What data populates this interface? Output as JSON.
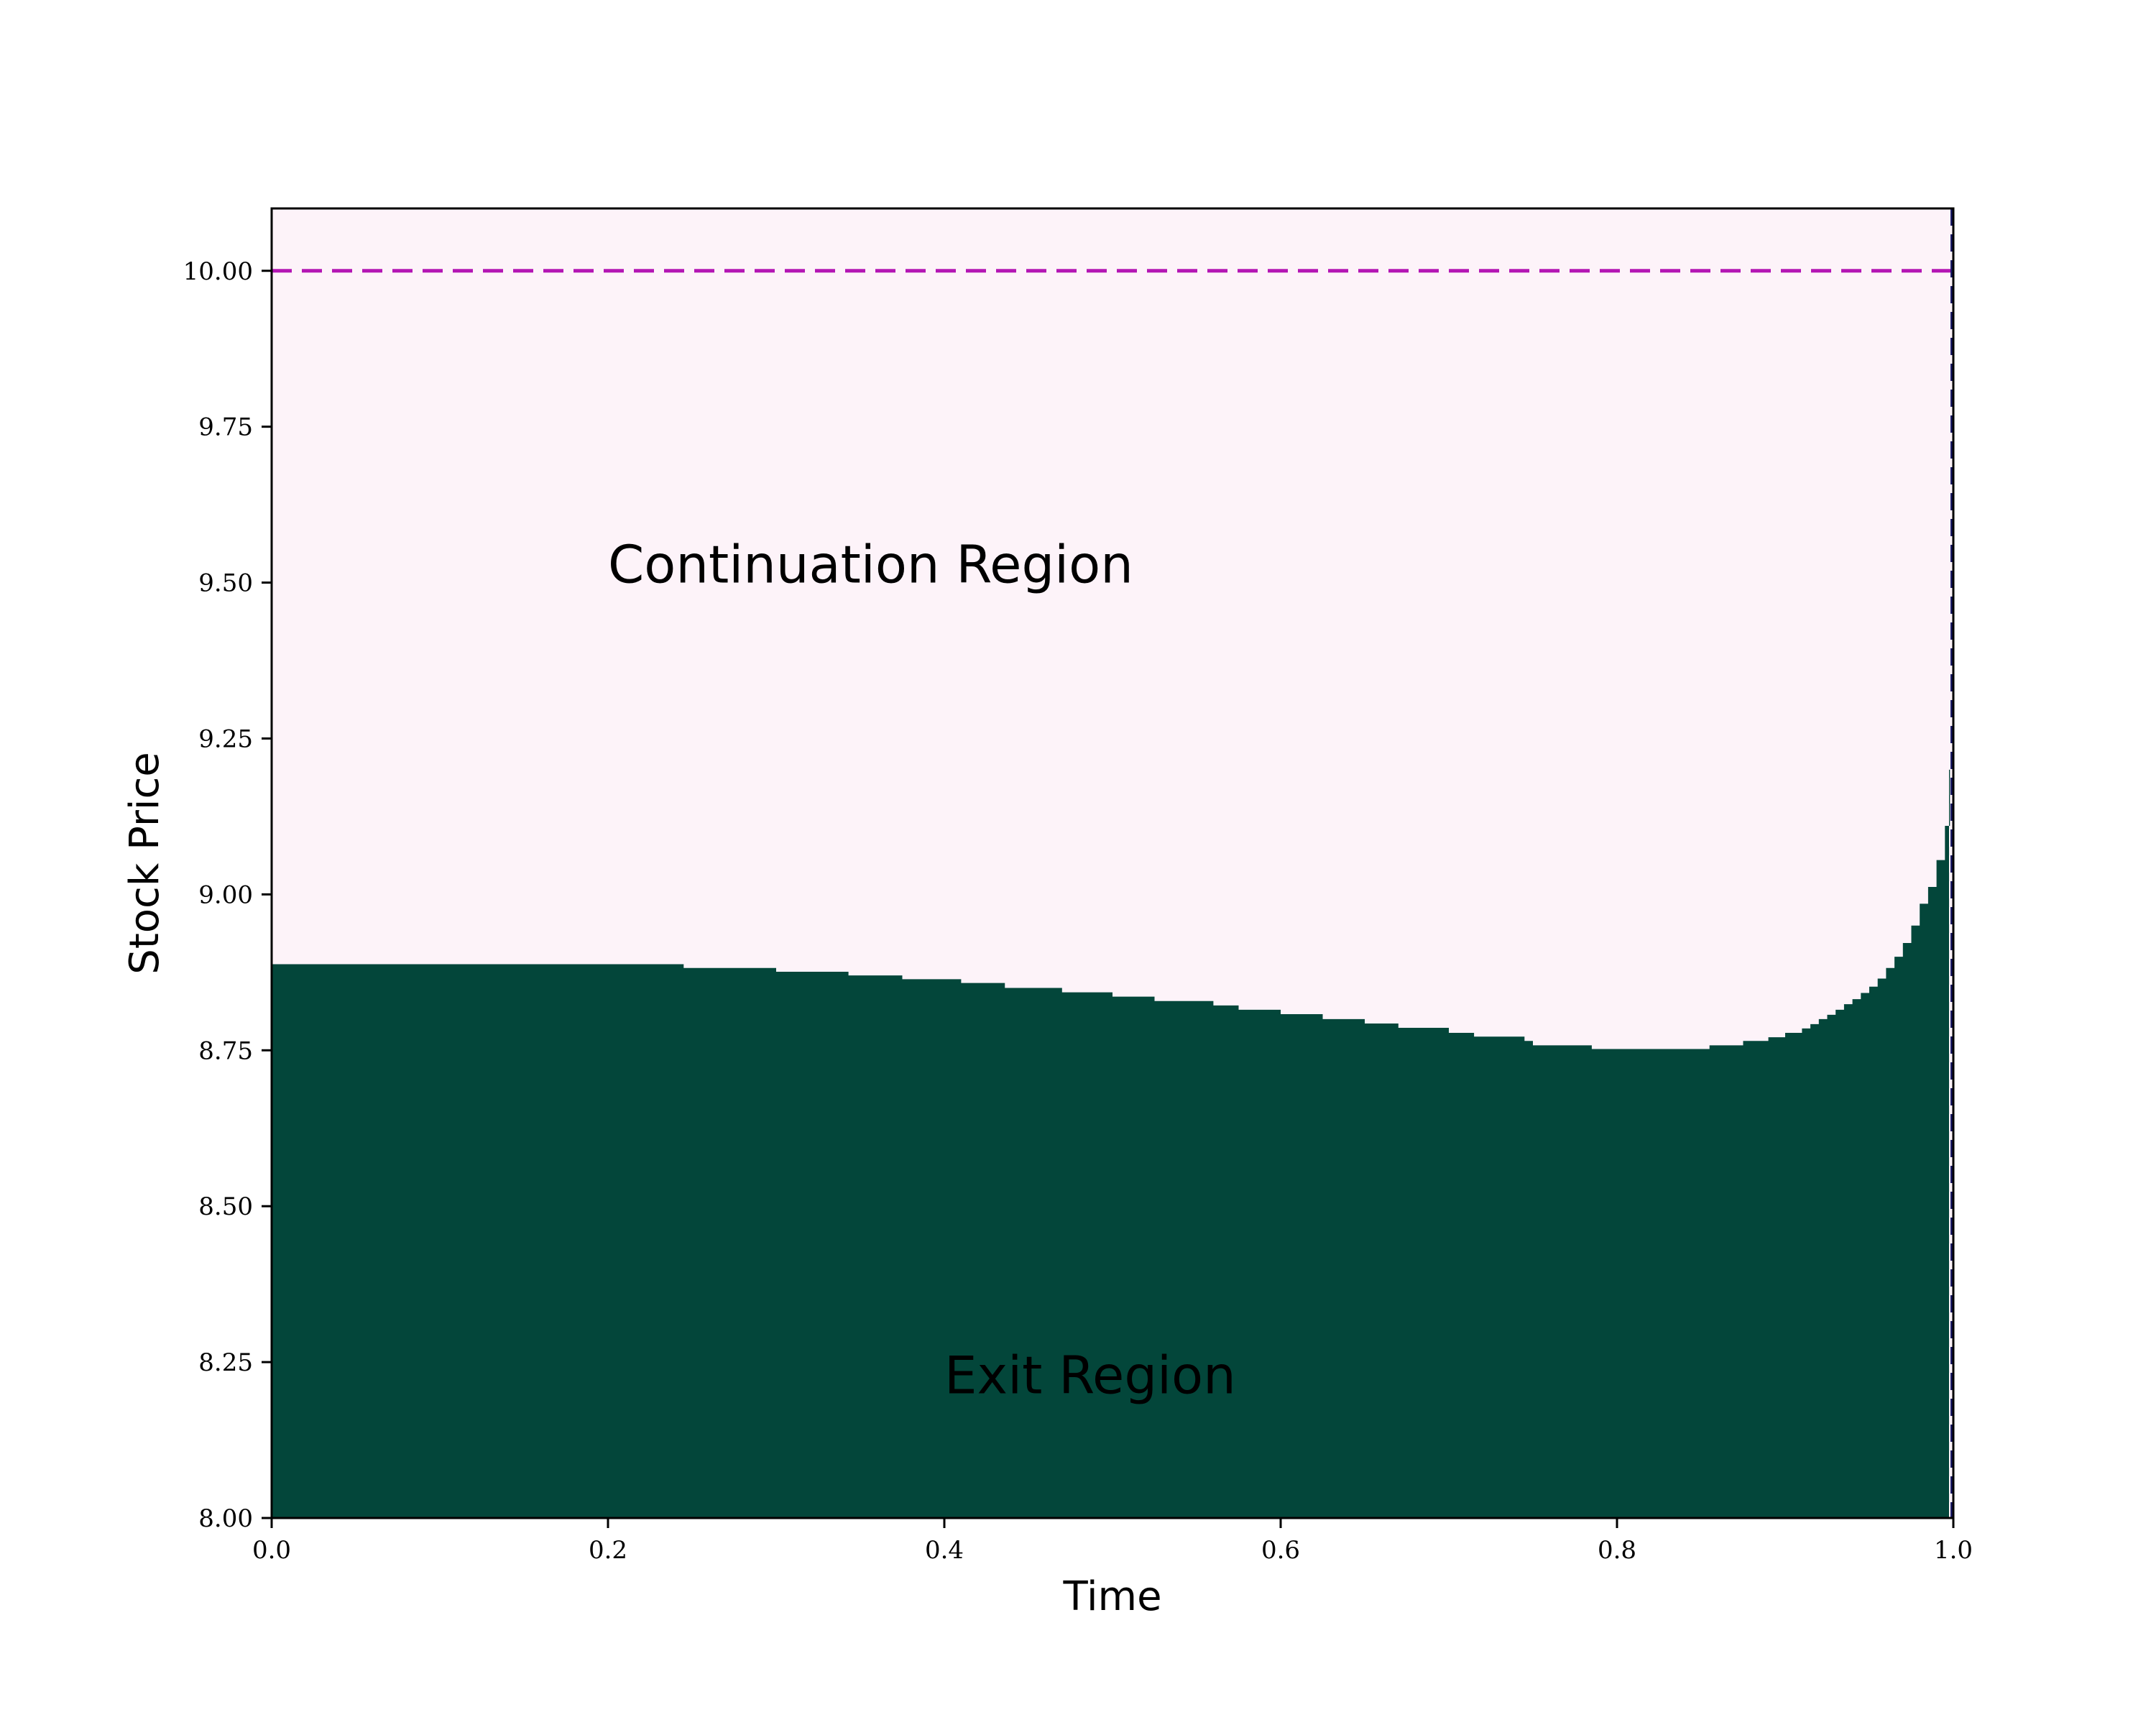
{
  "chart_data": {
    "type": "area",
    "xlabel": "Time",
    "ylabel": "Stock Price",
    "xlim": [
      0.0,
      1.0
    ],
    "ylim": [
      8.0,
      10.1
    ],
    "x_ticks": [
      "0.0",
      "0.2",
      "0.4",
      "0.6",
      "0.8",
      "1.0"
    ],
    "y_ticks": [
      "8.00",
      "8.25",
      "8.50",
      "8.75",
      "9.00",
      "9.25",
      "9.50",
      "9.75",
      "10.00"
    ],
    "grid": false,
    "colors": {
      "continuation": "#fdf3f9",
      "exit": "#03463a",
      "strike_line": "#b416b4",
      "maturity_line": "#1a1a66"
    },
    "strike_level": 10.0,
    "maturity_time": 1.0,
    "annotations": [
      {
        "text": "Continuation Region",
        "x": 0.2,
        "y": 9.5
      },
      {
        "text": "Exit Region",
        "x": 0.4,
        "y": 8.2
      }
    ],
    "exercise_boundary": {
      "x": [
        0.0,
        0.24,
        0.245,
        0.296,
        0.3,
        0.34,
        0.343,
        0.375,
        0.41,
        0.436,
        0.47,
        0.5,
        0.525,
        0.55,
        0.56,
        0.575,
        0.6,
        0.625,
        0.65,
        0.67,
        0.7,
        0.715,
        0.745,
        0.75,
        0.78,
        0.785,
        0.82,
        0.855,
        0.875,
        0.89,
        0.9,
        0.91,
        0.915,
        0.92,
        0.925,
        0.93,
        0.935,
        0.94,
        0.945,
        0.95,
        0.955,
        0.96,
        0.965,
        0.97,
        0.975,
        0.98,
        0.985,
        0.99,
        0.995,
        0.998
      ],
      "y": [
        8.888,
        8.888,
        8.882,
        8.882,
        8.876,
        8.876,
        8.87,
        8.864,
        8.858,
        8.85,
        8.843,
        8.836,
        8.829,
        8.829,
        8.822,
        8.815,
        8.808,
        8.8,
        8.793,
        8.786,
        8.778,
        8.772,
        8.765,
        8.758,
        8.758,
        8.752,
        8.752,
        8.758,
        8.765,
        8.771,
        8.778,
        8.785,
        8.792,
        8.8,
        8.807,
        8.815,
        8.824,
        8.832,
        8.842,
        8.852,
        8.865,
        8.882,
        8.9,
        8.922,
        8.95,
        8.985,
        9.012,
        9.055,
        9.11,
        9.2
      ]
    }
  }
}
